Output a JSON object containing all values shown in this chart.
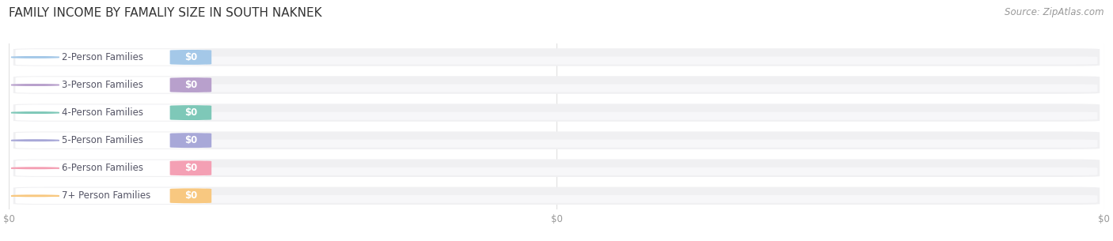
{
  "title": "FAMILY INCOME BY FAMALIY SIZE IN SOUTH NAKNEK",
  "source": "Source: ZipAtlas.com",
  "categories": [
    "2-Person Families",
    "3-Person Families",
    "4-Person Families",
    "5-Person Families",
    "6-Person Families",
    "7+ Person Families"
  ],
  "values": [
    0,
    0,
    0,
    0,
    0,
    0
  ],
  "bar_colors": [
    "#a4c8e8",
    "#b8a0cc",
    "#7ec8b8",
    "#a8a8d8",
    "#f4a0b4",
    "#f8c880"
  ],
  "background_color": "#ffffff",
  "bar_bg_color": "#f0f0f2",
  "bar_bg_inner_color": "#f8f8fa",
  "title_fontsize": 11,
  "source_fontsize": 8.5,
  "label_fontsize": 8.5,
  "value_fontsize": 8.5,
  "tick_fontsize": 8.5,
  "xtick_labels": [
    "$0",
    "$0",
    "$0"
  ],
  "grid_color": "#e0e0e0"
}
